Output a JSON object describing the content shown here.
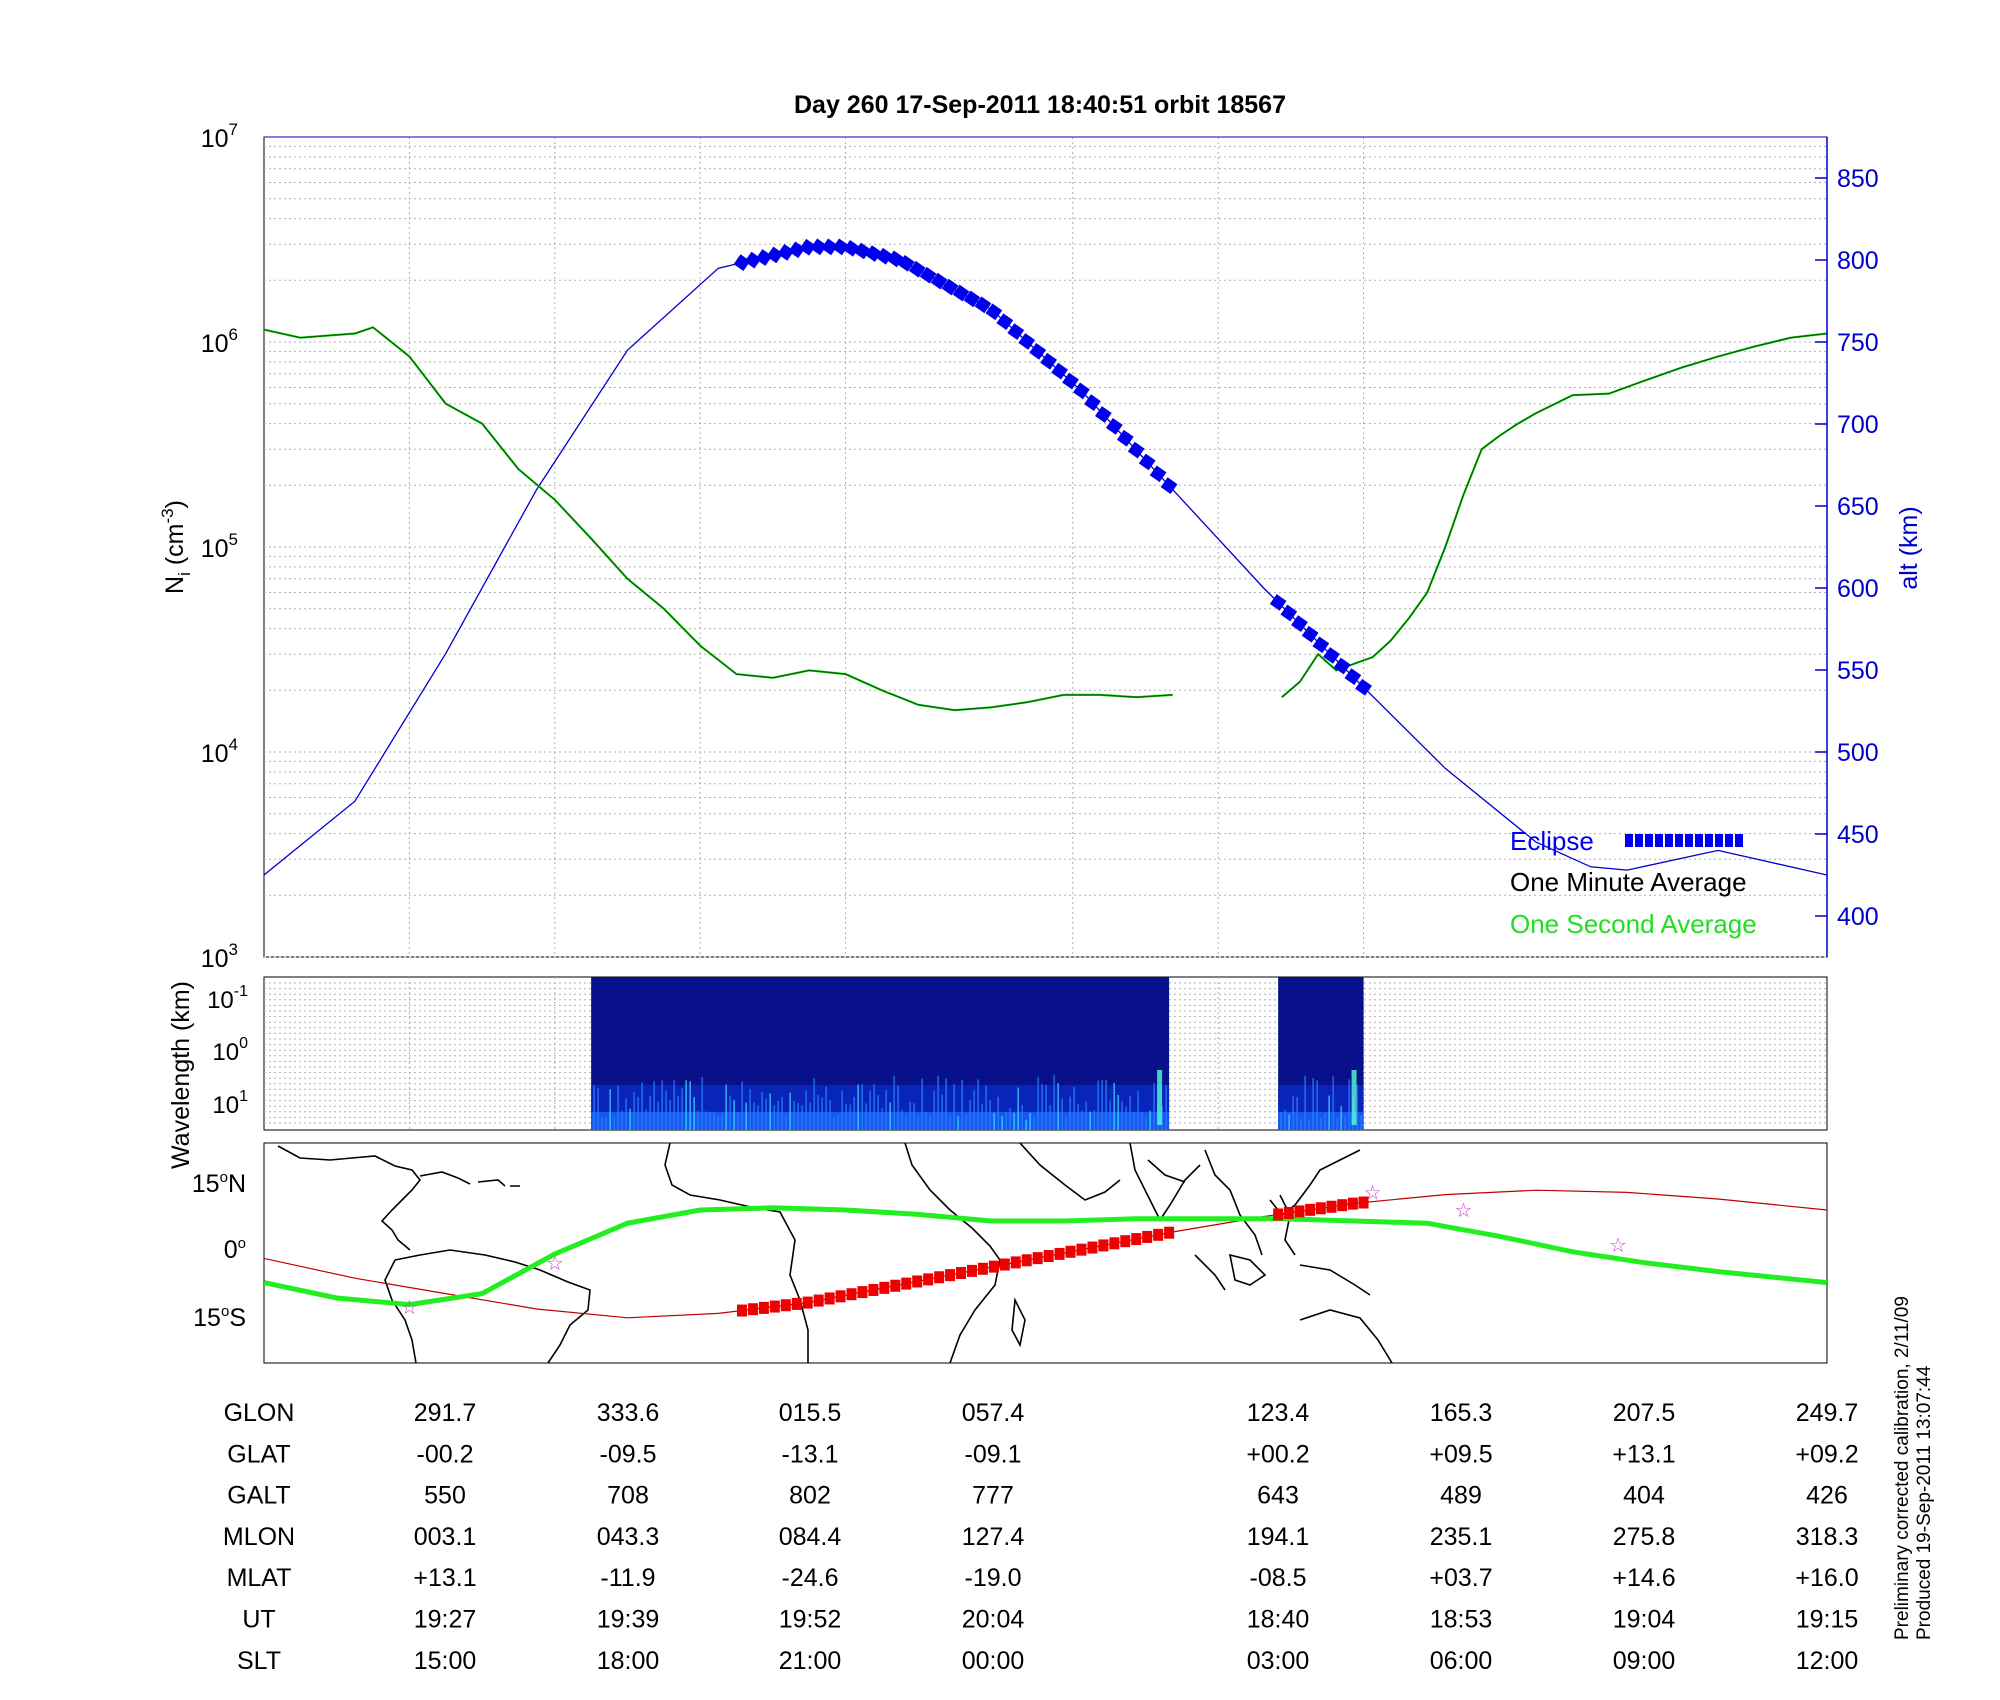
{
  "title": "Day 260  17-Sep-2011 18:40:51   orbit 18567",
  "colors": {
    "eclipse": "#0000ee",
    "minute_avg": "#006400",
    "second_avg": "#22dd22",
    "altitude": "#0000cc",
    "eclipse_track": "#ee0000",
    "map_track": "#c00000",
    "equator": "#22ee22",
    "star": "#cc44cc"
  },
  "chart_data": [
    {
      "type": "line",
      "name": "density",
      "ylabel": "N",
      "ylabel_sub": "i",
      "ylabel_unit": " (cm",
      "ylabel_exp": "-3",
      "ylabel_close": ")",
      "y_scale": "log",
      "ylim": [
        1000,
        10000000
      ],
      "y_ticks": [
        {
          "base": "10",
          "exp": "3",
          "value": 1000
        },
        {
          "base": "10",
          "exp": "4",
          "value": 10000
        },
        {
          "base": "10",
          "exp": "5",
          "value": 100000
        },
        {
          "base": "10",
          "exp": "6",
          "value": 1000000
        },
        {
          "base": "10",
          "exp": "7",
          "value": 10000000
        }
      ],
      "y2label": "alt (km)",
      "y2lim": [
        375,
        875
      ],
      "y2_ticks": [
        "400",
        "450",
        "500",
        "550",
        "600",
        "650",
        "700",
        "750",
        "800",
        "850"
      ],
      "grid": true,
      "legend": [
        {
          "label": "Eclipse",
          "color": "#0000ee"
        },
        {
          "label": "One Minute Average",
          "color": "#000000"
        },
        {
          "label": "One Second Average",
          "color": "#22dd22"
        }
      ],
      "legend_position": "bottom-right",
      "x_range": [
        0,
        86
      ],
      "segments": [
        {
          "x": [
            0,
            86
          ],
          "note": "axis span in minutes"
        }
      ],
      "density_segment_1": {
        "x": [
          0,
          2,
          5,
          6,
          8,
          10,
          12,
          14,
          16,
          18,
          20,
          22,
          24,
          26,
          28,
          30,
          32,
          34,
          36,
          38,
          40,
          42,
          44,
          46,
          48,
          50
        ],
        "y": [
          1150000,
          1050000,
          1100000,
          1180000,
          850000,
          500000,
          400000,
          240000,
          170000,
          110000,
          70000,
          50000,
          33000,
          24000,
          23000,
          25000,
          24000,
          20000,
          17000,
          16000,
          16500,
          17500,
          19000,
          19000,
          18500,
          19000
        ]
      },
      "density_segment_2": {
        "x": [
          56,
          57,
          58,
          59,
          60,
          61,
          62,
          63,
          64,
          65,
          66,
          67,
          68,
          69,
          70,
          72,
          74,
          76,
          78,
          80,
          82,
          84,
          86
        ],
        "y": [
          18500,
          22000,
          30000,
          25000,
          27000,
          29000,
          35000,
          45000,
          60000,
          100000,
          180000,
          300000,
          350000,
          400000,
          450000,
          550000,
          560000,
          650000,
          750000,
          850000,
          950000,
          1050000,
          1100000
        ]
      },
      "altitude": {
        "x": [
          0,
          5,
          10,
          15,
          20,
          25,
          30,
          32,
          35,
          40,
          45,
          50,
          55,
          60,
          65,
          70,
          73,
          75,
          80,
          86
        ],
        "y": [
          425,
          470,
          560,
          660,
          745,
          795,
          808,
          808,
          800,
          770,
          720,
          660,
          600,
          545,
          490,
          445,
          430,
          428,
          440,
          425
        ]
      },
      "eclipse_segments": [
        {
          "x_start": 26.3,
          "x_end": 49.8
        },
        {
          "x_start": 55.8,
          "x_end": 60.5
        }
      ]
    },
    {
      "type": "heatmap",
      "name": "spectrogram",
      "ylabel": "Wavelength (km)",
      "y_ticks": [
        {
          "base": "10",
          "exp": "-1"
        },
        {
          "base": "10",
          "exp": "0"
        },
        {
          "base": "10",
          "exp": "1"
        }
      ],
      "active_intervals": [
        {
          "x_start": 18.0,
          "x_end": 49.8
        },
        {
          "x_start": 55.8,
          "x_end": 60.5
        }
      ]
    },
    {
      "type": "scatter",
      "name": "ground-track map",
      "y_ticks": [
        "15",
        "0",
        "15"
      ],
      "y_tick_suffix": [
        "N",
        "",
        "S"
      ],
      "latitude_track": {
        "x": [
          0,
          5,
          10,
          15,
          20,
          25,
          30,
          35,
          40,
          45,
          50,
          55,
          60,
          65,
          70,
          75,
          80,
          86
        ],
        "lat": [
          -1,
          -5.5,
          -9,
          -12.5,
          -14.5,
          -13.5,
          -11,
          -7,
          -3,
          1,
          5,
          8.5,
          11.5,
          13.5,
          14.5,
          14,
          12.5,
          10
        ]
      },
      "magnetic_equator": {
        "x": [
          0,
          4,
          8,
          12,
          16,
          20,
          24,
          28,
          32,
          36,
          40,
          44,
          48,
          52,
          56,
          60,
          64,
          68,
          72,
          76,
          80,
          86
        ],
        "lat": [
          -6.5,
          -10,
          -11.5,
          -9,
          0,
          7,
          10,
          10.5,
          10,
          9,
          7.5,
          7.5,
          8,
          8,
          8,
          7.5,
          7,
          4,
          0.5,
          -2,
          -4,
          -6.5
        ]
      },
      "stars": [
        {
          "x": 8,
          "lat": -12
        },
        {
          "x": 16,
          "lat": -2
        },
        {
          "x": 61,
          "lat": 14
        },
        {
          "x": 66,
          "lat": 10
        },
        {
          "x": 74.5,
          "lat": 2
        }
      ]
    }
  ],
  "table": {
    "rows": [
      {
        "label": "GLON",
        "values": [
          "291.7",
          "333.6",
          "015.5",
          "057.4",
          "123.4",
          "165.3",
          "207.5",
          "249.7"
        ]
      },
      {
        "label": "GLAT",
        "values": [
          "-00.2",
          "-09.5",
          "-13.1",
          "-09.1",
          "+00.2",
          "+09.5",
          "+13.1",
          "+09.2"
        ]
      },
      {
        "label": "GALT",
        "values": [
          "550",
          "708",
          "802",
          "777",
          "643",
          "489",
          "404",
          "426"
        ]
      },
      {
        "label": "MLON",
        "values": [
          "003.1",
          "043.3",
          "084.4",
          "127.4",
          "194.1",
          "235.1",
          "275.8",
          "318.3"
        ]
      },
      {
        "label": "MLAT",
        "values": [
          "+13.1",
          "-11.9",
          "-24.6",
          "-19.0",
          "-08.5",
          "+03.7",
          "+14.6",
          "+16.0"
        ]
      },
      {
        "label": "UT",
        "values": [
          "19:27",
          "19:39",
          "19:52",
          "20:04",
          "18:40",
          "18:53",
          "19:04",
          "19:15"
        ]
      },
      {
        "label": "SLT",
        "values": [
          "15:00",
          "18:00",
          "21:00",
          "00:00",
          "03:00",
          "06:00",
          "09:00",
          "12:00"
        ]
      }
    ]
  },
  "footnote": {
    "line1": "Preliminary corrected calibration, 2/11/09",
    "line2": "Produced 19-Sep-2011 13:07:44"
  }
}
